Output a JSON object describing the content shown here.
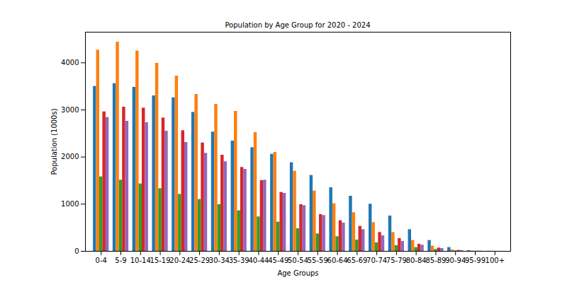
{
  "chart_data": {
    "type": "bar",
    "title": "Population by Age Group for 2020 - 2024",
    "x_label": "Age Groups",
    "y_label": "Population (1000s)",
    "categories": [
      "0-4",
      "5-9",
      "10-14",
      "15-19",
      "20-24",
      "25-29",
      "30-34",
      "35-39",
      "40-44",
      "45-49",
      "50-54",
      "55-59",
      "60-64",
      "65-69",
      "70-74",
      "75-79",
      "80-84",
      "85-89",
      "90-94",
      "95-99",
      "100+"
    ],
    "series": [
      {
        "color": "#1f77b4",
        "values": [
          3500,
          3560,
          3480,
          3300,
          3260,
          2950,
          2530,
          2340,
          2200,
          2060,
          1880,
          1610,
          1350,
          1170,
          1000,
          750,
          460,
          230,
          80,
          15,
          3
        ]
      },
      {
        "color": "#ff7f0e",
        "values": [
          4270,
          4440,
          4250,
          3990,
          3720,
          3330,
          3120,
          2970,
          2520,
          2100,
          1700,
          1280,
          1010,
          820,
          610,
          400,
          230,
          110,
          30,
          8,
          2
        ]
      },
      {
        "color": "#2ca02c",
        "values": [
          1580,
          1510,
          1430,
          1330,
          1210,
          1100,
          990,
          860,
          730,
          620,
          480,
          370,
          310,
          240,
          180,
          120,
          80,
          40,
          10,
          3,
          1
        ]
      },
      {
        "color": "#d62728",
        "values": [
          2960,
          3060,
          3040,
          2830,
          2560,
          2300,
          2040,
          1780,
          1500,
          1250,
          990,
          780,
          650,
          530,
          400,
          270,
          150,
          70,
          20,
          5,
          1
        ]
      },
      {
        "color": "#9467bd",
        "values": [
          2840,
          2760,
          2730,
          2550,
          2310,
          2080,
          1900,
          1740,
          1510,
          1230,
          970,
          760,
          600,
          460,
          330,
          210,
          130,
          60,
          15,
          4,
          1
        ]
      }
    ],
    "ylim": [
      0,
      4650
    ],
    "yticks": [
      0,
      1000,
      2000,
      3000,
      4000
    ],
    "grid": false
  }
}
